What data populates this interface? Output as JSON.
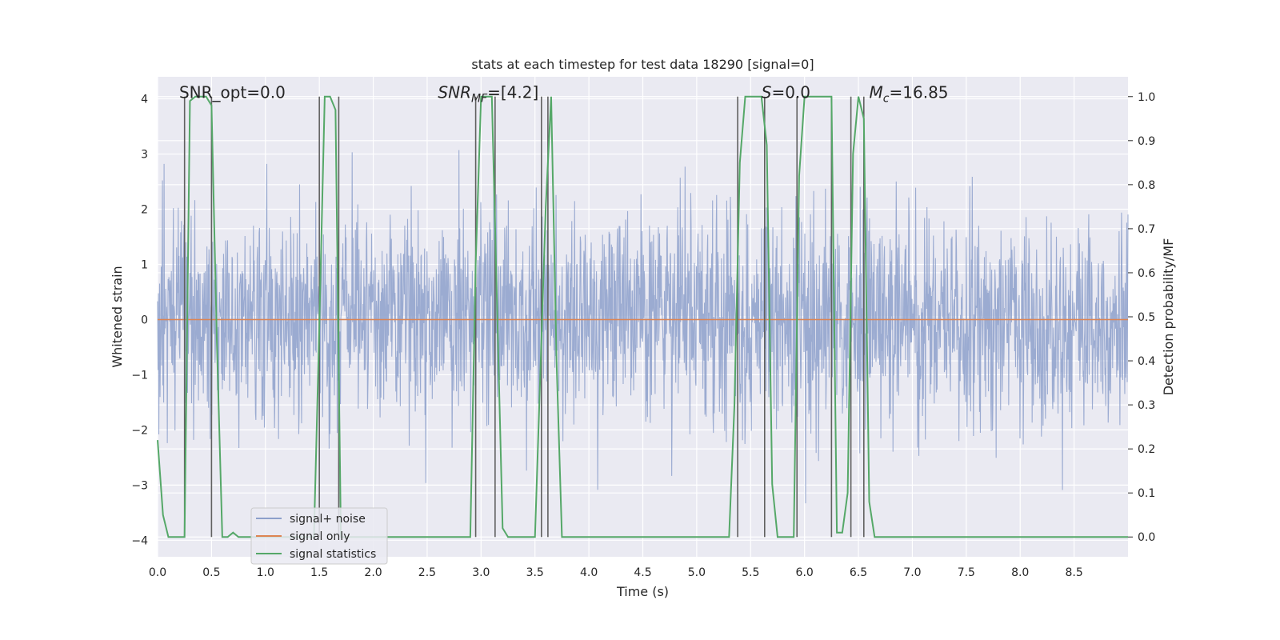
{
  "chart_data": {
    "type": "line",
    "title": "stats at each timestep for test data 18290 [signal=0]",
    "xlabel": "Time (s)",
    "ylabel": "Whitened strain",
    "y2label": "Detection probability/MF",
    "xlim": [
      0,
      9.0
    ],
    "ylim": [
      -4.3,
      4.4
    ],
    "y2lim": [
      -0.045,
      1.045
    ],
    "xticks": [
      "0.0",
      "0.5",
      "1.0",
      "1.5",
      "2.0",
      "2.5",
      "3.0",
      "3.5",
      "4.0",
      "4.5",
      "5.0",
      "5.5",
      "6.0",
      "6.5",
      "7.0",
      "7.5",
      "8.0",
      "8.5"
    ],
    "yticks": [
      "4",
      "3",
      "2",
      "1",
      "0",
      "−1",
      "−2",
      "−3",
      "−4"
    ],
    "y2ticks": [
      "1.0",
      "0.9",
      "0.8",
      "0.7",
      "0.6",
      "0.5",
      "0.4",
      "0.3",
      "0.2",
      "0.1",
      "0.0"
    ],
    "grid": true,
    "legend_position": "lower-left",
    "colors": {
      "noise": "#8da0cb",
      "signal": "#dd8452",
      "stats": "#55a868",
      "vlines": "#606060",
      "plot_bg": "#eaeaf2",
      "grid": "#ffffff"
    },
    "annotations": [
      {
        "x": 0.2,
        "parts": [
          {
            "t": "SNR_opt=0.0"
          }
        ]
      },
      {
        "x": 2.6,
        "parts": [
          {
            "t": "SNR",
            "i": true
          },
          {
            "t": "MF",
            "i": true,
            "sub": true
          },
          {
            "t": "=[4.2]"
          }
        ]
      },
      {
        "x": 5.6,
        "parts": [
          {
            "t": "S",
            "i": true
          },
          {
            "t": "=0.0"
          }
        ]
      },
      {
        "x": 6.6,
        "parts": [
          {
            "t": "M",
            "i": true
          },
          {
            "t": "c",
            "i": true,
            "sub": true
          },
          {
            "t": "=16.85"
          }
        ]
      }
    ],
    "series": [
      {
        "name": "signal+ noise",
        "kind": "noise",
        "axis": "left",
        "std": 0.95
      },
      {
        "name": "signal only",
        "kind": "flat",
        "axis": "left",
        "values": [
          [
            0,
            0
          ],
          [
            9.0,
            0
          ]
        ]
      },
      {
        "name": "signal statistics",
        "kind": "line",
        "axis": "right",
        "values": [
          [
            0.0,
            0.22
          ],
          [
            0.05,
            0.05
          ],
          [
            0.1,
            0.0
          ],
          [
            0.25,
            0.0
          ],
          [
            0.3,
            0.99
          ],
          [
            0.35,
            1.0
          ],
          [
            0.4,
            1.0
          ],
          [
            0.45,
            1.0
          ],
          [
            0.5,
            0.98
          ],
          [
            0.55,
            0.44
          ],
          [
            0.6,
            0.0
          ],
          [
            0.65,
            0.0
          ],
          [
            0.7,
            0.01
          ],
          [
            0.75,
            0.0
          ],
          [
            0.8,
            0.0
          ],
          [
            0.9,
            0.0
          ],
          [
            1.0,
            0.0
          ],
          [
            1.45,
            0.0
          ],
          [
            1.5,
            0.48
          ],
          [
            1.55,
            1.0
          ],
          [
            1.6,
            1.0
          ],
          [
            1.65,
            0.97
          ],
          [
            1.7,
            0.0
          ],
          [
            1.75,
            0.0
          ],
          [
            2.5,
            0.0
          ],
          [
            2.9,
            0.0
          ],
          [
            2.95,
            0.62
          ],
          [
            3.0,
            1.0
          ],
          [
            3.1,
            1.0
          ],
          [
            3.2,
            0.02
          ],
          [
            3.25,
            0.0
          ],
          [
            3.5,
            0.0
          ],
          [
            3.6,
            0.75
          ],
          [
            3.65,
            1.0
          ],
          [
            3.7,
            0.4
          ],
          [
            3.75,
            0.0
          ],
          [
            4.0,
            0.0
          ],
          [
            5.3,
            0.0
          ],
          [
            5.35,
            0.3
          ],
          [
            5.4,
            0.85
          ],
          [
            5.45,
            1.0
          ],
          [
            5.6,
            1.0
          ],
          [
            5.65,
            0.89
          ],
          [
            5.7,
            0.12
          ],
          [
            5.75,
            0.0
          ],
          [
            5.9,
            0.0
          ],
          [
            5.95,
            0.82
          ],
          [
            6.0,
            1.0
          ],
          [
            6.1,
            1.0
          ],
          [
            6.25,
            1.0
          ],
          [
            6.3,
            0.01
          ],
          [
            6.35,
            0.01
          ],
          [
            6.4,
            0.1
          ],
          [
            6.45,
            0.87
          ],
          [
            6.5,
            1.0
          ],
          [
            6.55,
            0.95
          ],
          [
            6.6,
            0.08
          ],
          [
            6.65,
            0.0
          ],
          [
            9.0,
            0.0
          ]
        ]
      }
    ],
    "vlines": [
      0.25,
      0.5,
      1.5,
      1.68,
      2.95,
      3.13,
      3.56,
      3.62,
      5.38,
      5.63,
      5.93,
      6.25,
      6.43,
      6.55
    ]
  }
}
